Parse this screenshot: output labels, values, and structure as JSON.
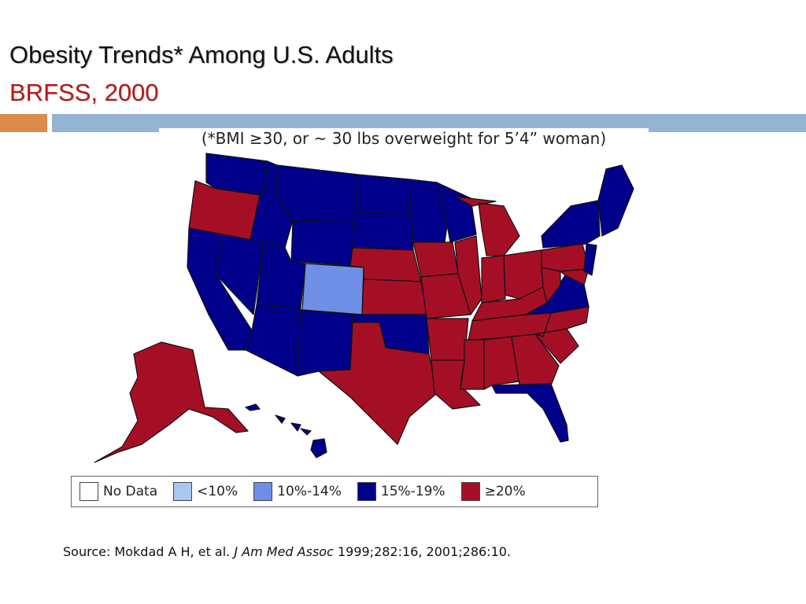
{
  "slide": {
    "title": "Obesity Trends* Among U.S. Adults",
    "subtitle": "BRFSS, 2000"
  },
  "map": {
    "note": "(*BMI ≥30, or ~ 30 lbs overweight for 5’4” woman)",
    "colors": {
      "no_data": "#ffffff",
      "lt10": "#a9c8f0",
      "c10_14": "#6f8fe6",
      "c15_19": "#00008b",
      "ge20": "#a50f26"
    },
    "legend": [
      {
        "label": "No Data",
        "color": "#ffffff"
      },
      {
        "label": "<10%",
        "color": "#a9c8f0"
      },
      {
        "label": "10%-14%",
        "color": "#6f8fe6"
      },
      {
        "label": "15%-19%",
        "color": "#00008b"
      },
      {
        "label": "≥20%",
        "color": "#a50f26"
      }
    ]
  },
  "source": {
    "prefix": "Source: Mokdad A H, et al. ",
    "journal": "J Am Med Assoc",
    "suffix": " 1999;282:16, 2001;286:10."
  }
}
